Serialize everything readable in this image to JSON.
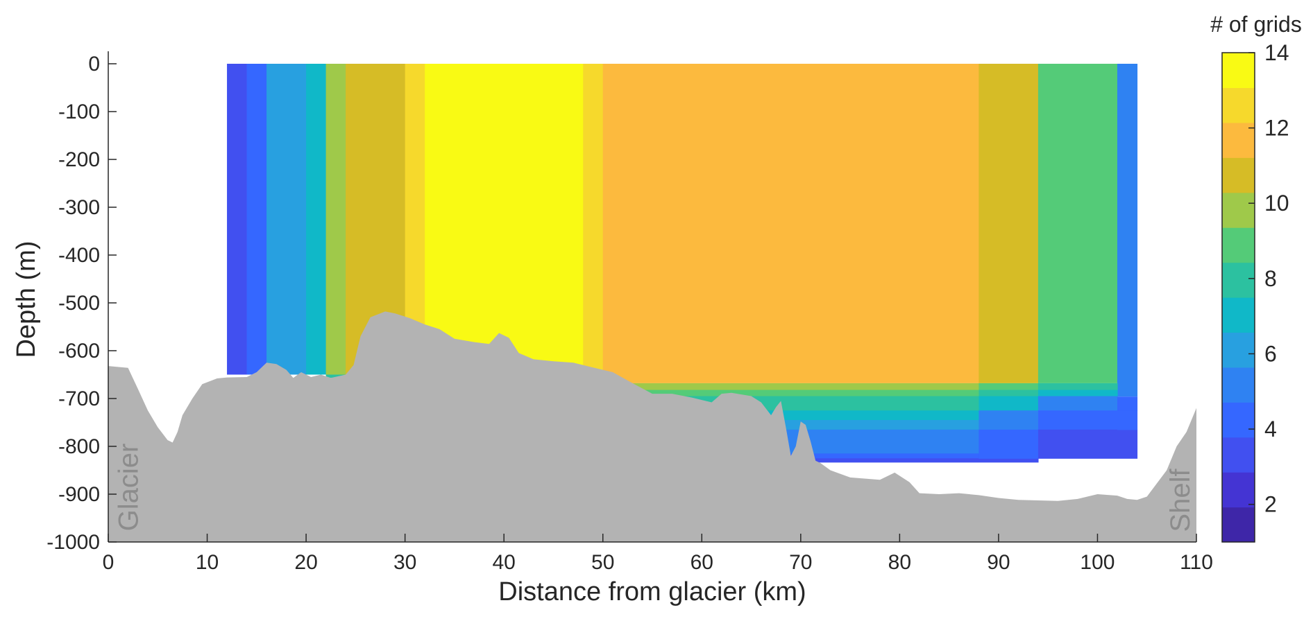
{
  "chart_data": {
    "type": "heatmap",
    "xlabel": "Distance from glacier (km)",
    "ylabel": "Depth (m)",
    "xlim": [
      0,
      110
    ],
    "ylim": [
      -1000,
      0
    ],
    "xticks": [
      0,
      10,
      20,
      30,
      40,
      50,
      60,
      70,
      80,
      90,
      100,
      110
    ],
    "yticks": [
      0,
      -100,
      -200,
      -300,
      -400,
      -500,
      -600,
      -700,
      -800,
      -900,
      -1000
    ],
    "colorbar": {
      "title": "# of grids",
      "range": [
        1,
        14
      ],
      "ticks": [
        2,
        4,
        6,
        8,
        10,
        12,
        14
      ],
      "colors": [
        "#3e26a8",
        "#4434d3",
        "#4150f0",
        "#3567ff",
        "#2f82f2",
        "#28a0e0",
        "#10b8c8",
        "#2cc1a0",
        "#54cb78",
        "#9fc94a",
        "#d6bc26",
        "#fcba3e",
        "#f6d92c",
        "#f9fa14"
      ]
    },
    "columns": [
      {
        "x": [
          12,
          14
        ],
        "count": 3,
        "bottom": -650
      },
      {
        "x": [
          14,
          16
        ],
        "count": 4,
        "bottom": -650
      },
      {
        "x": [
          16,
          20
        ],
        "count": 6,
        "bottom": -650
      },
      {
        "x": [
          20,
          22
        ],
        "count": 7,
        "bottom": -650
      },
      {
        "x": [
          22,
          24
        ],
        "count": 10,
        "bottom": -650
      },
      {
        "x": [
          24,
          30
        ],
        "count": 11,
        "bottom": -650
      },
      {
        "x": [
          30,
          32
        ],
        "count": 13,
        "bottom": -650
      },
      {
        "x": [
          32,
          48
        ],
        "count": 14,
        "bottom": -650
      },
      {
        "x": [
          48,
          50
        ],
        "count": 13,
        "bottom": -650
      },
      {
        "x": [
          50,
          88
        ],
        "count": 12,
        "bottom": -668
      },
      {
        "x": [
          88,
          94
        ],
        "count": 11,
        "bottom": -668
      },
      {
        "x": [
          94,
          102
        ],
        "count": 9,
        "bottom": -668
      },
      {
        "x": [
          102,
          104
        ],
        "count": 5,
        "bottom": -696
      }
    ],
    "lower_bands": [
      {
        "x": [
          22,
          24
        ],
        "depth": [
          -650,
          -656
        ],
        "count": 8
      },
      {
        "x": [
          50,
          88
        ],
        "depth": [
          -668,
          -682
        ],
        "count": 10
      },
      {
        "x": [
          50,
          88
        ],
        "depth": [
          -682,
          -695
        ],
        "count": 9
      },
      {
        "x": [
          50,
          88
        ],
        "depth": [
          -695,
          -725
        ],
        "count": 8
      },
      {
        "x": [
          50,
          88
        ],
        "depth": [
          -725,
          -745
        ],
        "count": 7
      },
      {
        "x": [
          50,
          88
        ],
        "depth": [
          -745,
          -765
        ],
        "count": 6
      },
      {
        "x": [
          50,
          88
        ],
        "depth": [
          -765,
          -815
        ],
        "count": 5
      },
      {
        "x": [
          50,
          88
        ],
        "depth": [
          -815,
          -825
        ],
        "count": 4
      },
      {
        "x": [
          50,
          94
        ],
        "depth": [
          -825,
          -833
        ],
        "count": 3
      },
      {
        "x": [
          88,
          94
        ],
        "depth": [
          -668,
          -682
        ],
        "count": 9
      },
      {
        "x": [
          88,
          94
        ],
        "depth": [
          -682,
          -695
        ],
        "count": 8
      },
      {
        "x": [
          88,
          94
        ],
        "depth": [
          -695,
          -725
        ],
        "count": 7
      },
      {
        "x": [
          88,
          94
        ],
        "depth": [
          -725,
          -765
        ],
        "count": 5
      },
      {
        "x": [
          88,
          94
        ],
        "depth": [
          -765,
          -825
        ],
        "count": 4
      },
      {
        "x": [
          94,
          102
        ],
        "depth": [
          -668,
          -682
        ],
        "count": 8
      },
      {
        "x": [
          94,
          102
        ],
        "depth": [
          -682,
          -695
        ],
        "count": 7
      },
      {
        "x": [
          94,
          102
        ],
        "depth": [
          -695,
          -725
        ],
        "count": 5
      },
      {
        "x": [
          94,
          102
        ],
        "depth": [
          -725,
          -765
        ],
        "count": 4
      },
      {
        "x": [
          94,
          104
        ],
        "depth": [
          -765,
          -825
        ],
        "count": 3
      },
      {
        "x": [
          102,
          104
        ],
        "depth": [
          -696,
          -725
        ],
        "count": 4
      },
      {
        "x": [
          102,
          104
        ],
        "depth": [
          -725,
          -765
        ],
        "count": 4
      }
    ],
    "bathymetry": {
      "color": "#b3b3b3",
      "x": [
        0,
        2,
        3,
        4,
        5,
        6,
        6.5,
        7,
        7.5,
        8.5,
        9.5,
        11,
        12,
        14,
        15,
        16,
        17,
        18,
        18.7,
        19.5,
        20.5,
        21.5,
        22.5,
        24,
        24.8,
        25.5,
        26.5,
        28,
        29,
        30.5,
        32,
        33.5,
        35,
        37,
        38.5,
        39.5,
        40.5,
        41.5,
        43,
        45,
        47,
        49,
        51,
        53,
        55,
        57,
        59,
        61,
        62,
        63,
        65,
        66,
        67,
        67.5,
        68,
        68.5,
        69,
        69.5,
        70,
        70.5,
        71,
        71.5,
        72,
        73,
        75,
        78,
        79.5,
        81,
        82,
        84,
        86,
        88,
        90,
        92,
        94,
        96,
        98,
        100,
        102,
        103,
        104,
        105,
        107,
        108,
        109,
        110
      ],
      "depth": [
        -632,
        -636,
        -680,
        -725,
        -760,
        -787,
        -792,
        -770,
        -735,
        -700,
        -670,
        -658,
        -656,
        -655,
        -645,
        -625,
        -628,
        -640,
        -657,
        -645,
        -655,
        -650,
        -657,
        -650,
        -630,
        -570,
        -530,
        -518,
        -522,
        -532,
        -545,
        -555,
        -575,
        -582,
        -586,
        -563,
        -573,
        -605,
        -618,
        -622,
        -625,
        -635,
        -645,
        -668,
        -690,
        -690,
        -698,
        -708,
        -690,
        -688,
        -695,
        -708,
        -735,
        -718,
        -705,
        -760,
        -820,
        -800,
        -748,
        -755,
        -790,
        -830,
        -835,
        -850,
        -865,
        -870,
        -855,
        -875,
        -898,
        -900,
        -898,
        -902,
        -908,
        -912,
        -913,
        -914,
        -910,
        -900,
        -903,
        -910,
        -912,
        -905,
        -850,
        -800,
        -770,
        -720
      ]
    },
    "annotations": [
      {
        "text": "Glacier",
        "x": 2,
        "y": -890
      },
      {
        "text": "Shelf",
        "x": 108.3,
        "y": -890
      }
    ]
  }
}
